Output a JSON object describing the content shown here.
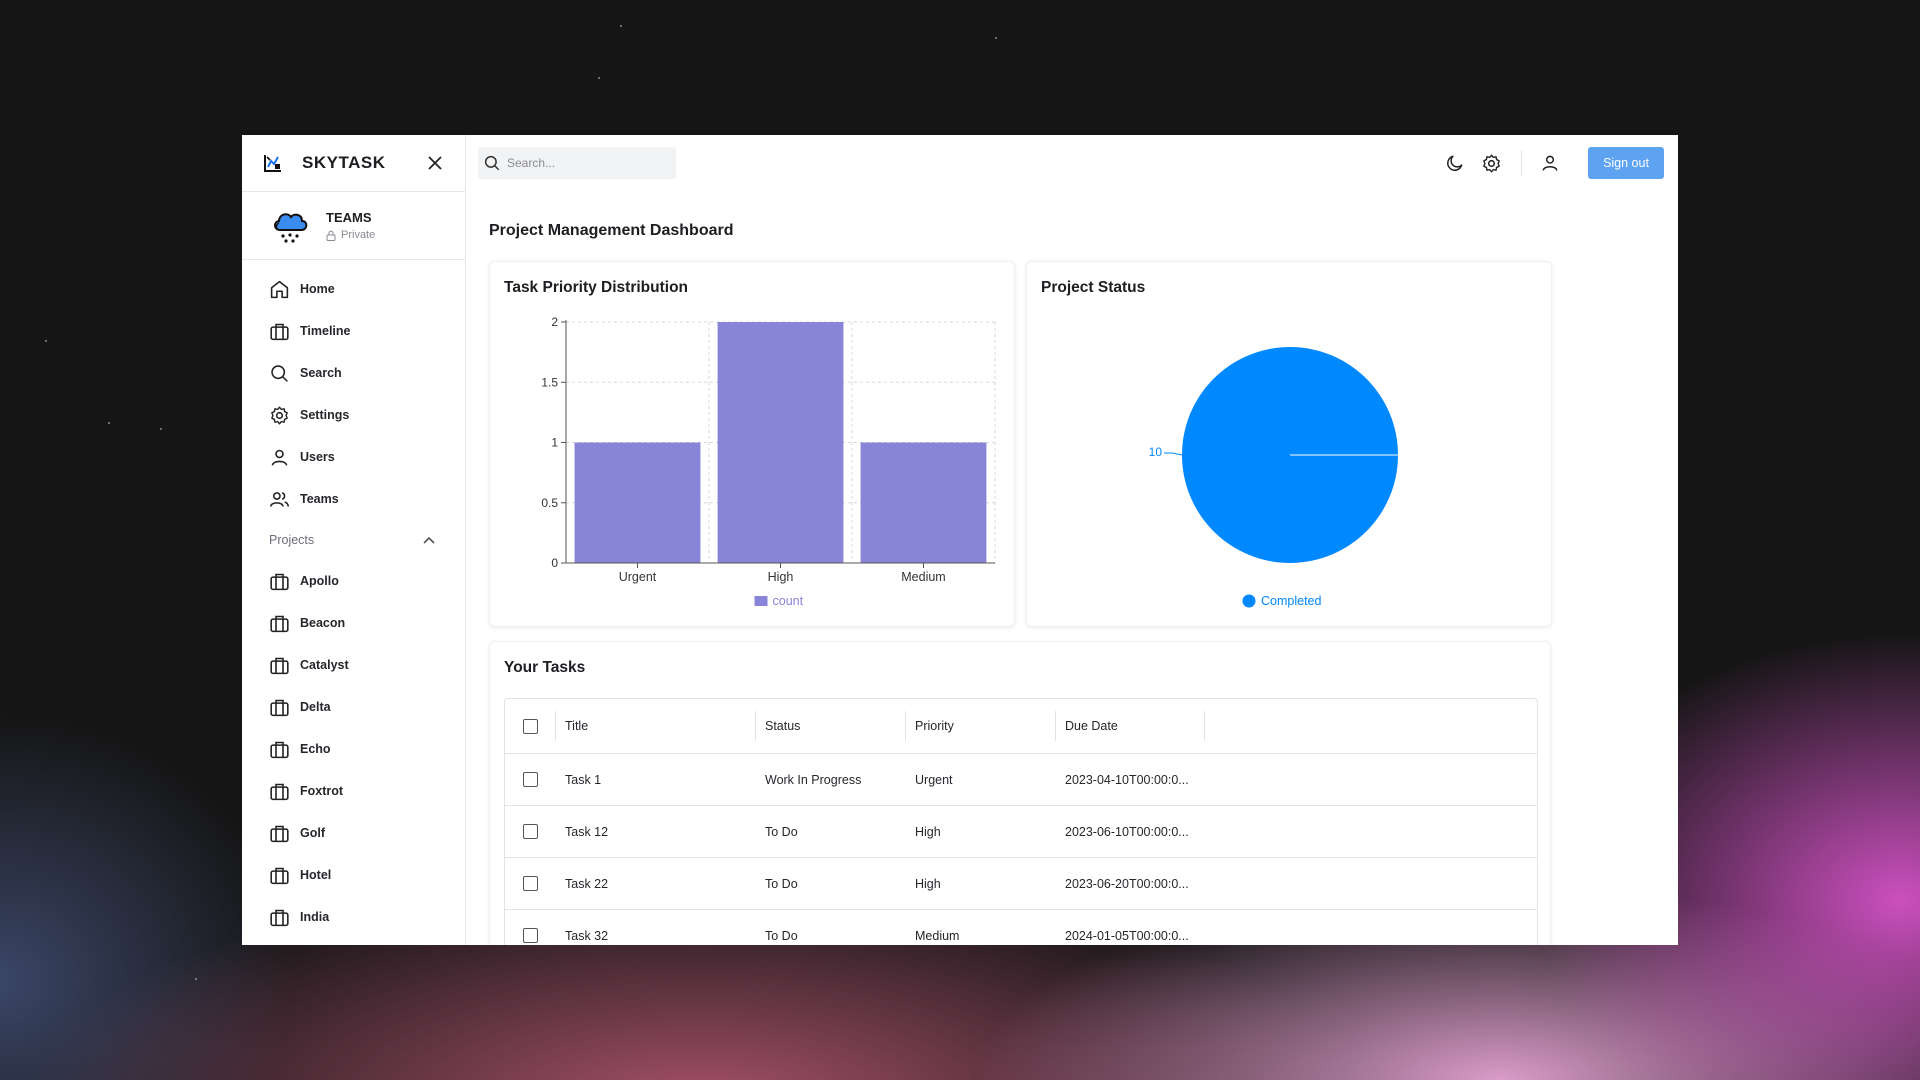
{
  "app": {
    "name": "SKYTASK"
  },
  "team": {
    "name": "TEAMS",
    "visibility": "Private"
  },
  "nav": [
    {
      "label": "Home",
      "icon": "home-icon"
    },
    {
      "label": "Timeline",
      "icon": "briefcase-icon"
    },
    {
      "label": "Search",
      "icon": "search-icon"
    },
    {
      "label": "Settings",
      "icon": "gear-icon"
    },
    {
      "label": "Users",
      "icon": "user-icon"
    },
    {
      "label": "Teams",
      "icon": "users-icon"
    }
  ],
  "projects": {
    "label": "Projects",
    "items": [
      "Apollo",
      "Beacon",
      "Catalyst",
      "Delta",
      "Echo",
      "Foxtrot",
      "Golf",
      "Hotel",
      "India"
    ]
  },
  "topbar": {
    "search_placeholder": "Search...",
    "signout_label": "Sign out"
  },
  "page": {
    "title": "Project Management Dashboard"
  },
  "chart_data": [
    {
      "type": "bar",
      "title": "Task Priority Distribution",
      "categories": [
        "Urgent",
        "High",
        "Medium"
      ],
      "series": [
        {
          "name": "count",
          "values": [
            1,
            2,
            1
          ]
        }
      ],
      "ylim": [
        0,
        2
      ],
      "yticks": [
        "0",
        "0.5",
        "1",
        "1.5",
        "2"
      ],
      "grid": true,
      "legend": "bottom",
      "color": "#8884d8"
    },
    {
      "type": "pie",
      "title": "Project Status",
      "slices": [
        {
          "name": "Completed",
          "value": 10
        }
      ],
      "legend": "bottom",
      "color": "#0088fe"
    }
  ],
  "tasks": {
    "title": "Your Tasks",
    "columns": [
      "Title",
      "Status",
      "Priority",
      "Due Date"
    ],
    "rows": [
      {
        "title": "Task 1",
        "status": "Work In Progress",
        "priority": "Urgent",
        "due": "2023-04-10T00:00:0..."
      },
      {
        "title": "Task 12",
        "status": "To Do",
        "priority": "High",
        "due": "2023-06-10T00:00:0..."
      },
      {
        "title": "Task 22",
        "status": "To Do",
        "priority": "High",
        "due": "2023-06-20T00:00:0..."
      },
      {
        "title": "Task 32",
        "status": "To Do",
        "priority": "Medium",
        "due": "2024-01-05T00:00:0..."
      }
    ]
  }
}
